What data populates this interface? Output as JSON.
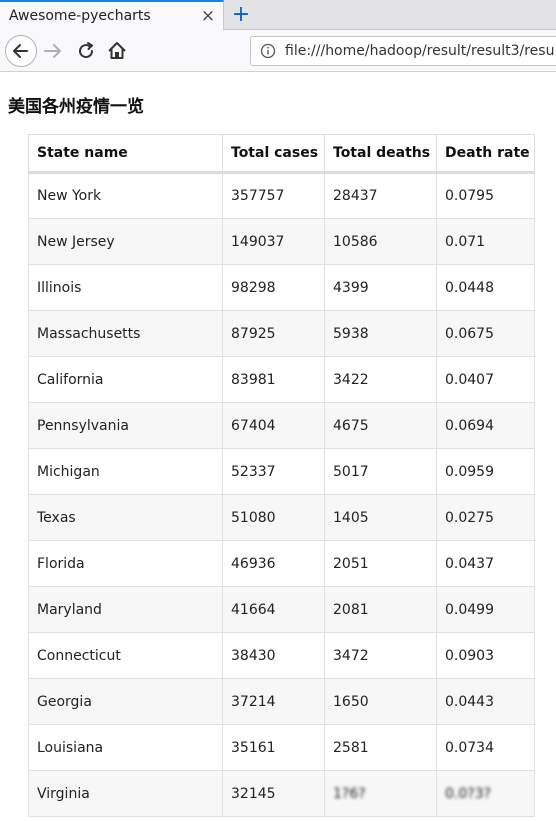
{
  "browser": {
    "tab_title": "Awesome-pyecharts",
    "tab_close": "×",
    "new_tab": "+",
    "url": "file:///home/hadoop/result/result3/resu"
  },
  "page": {
    "heading": "美国各州疫情一览"
  },
  "table": {
    "headers": [
      "State name",
      "Total cases",
      "Total deaths",
      "Death rate"
    ],
    "rows": [
      [
        "New York",
        "357757",
        "28437",
        "0.0795"
      ],
      [
        "New Jersey",
        "149037",
        "10586",
        "0.071"
      ],
      [
        "Illinois",
        "98298",
        "4399",
        "0.0448"
      ],
      [
        "Massachusetts",
        "87925",
        "5938",
        "0.0675"
      ],
      [
        "California",
        "83981",
        "3422",
        "0.0407"
      ],
      [
        "Pennsylvania",
        "67404",
        "4675",
        "0.0694"
      ],
      [
        "Michigan",
        "52337",
        "5017",
        "0.0959"
      ],
      [
        "Texas",
        "51080",
        "1405",
        "0.0275"
      ],
      [
        "Florida",
        "46936",
        "2051",
        "0.0437"
      ],
      [
        "Maryland",
        "41664",
        "2081",
        "0.0499"
      ],
      [
        "Connecticut",
        "38430",
        "3472",
        "0.0903"
      ],
      [
        "Georgia",
        "37214",
        "1650",
        "0.0443"
      ],
      [
        "Louisiana",
        "35161",
        "2581",
        "0.0734"
      ],
      [
        "Virginia",
        "32145",
        "1?6?",
        "0.0?3?"
      ]
    ]
  }
}
